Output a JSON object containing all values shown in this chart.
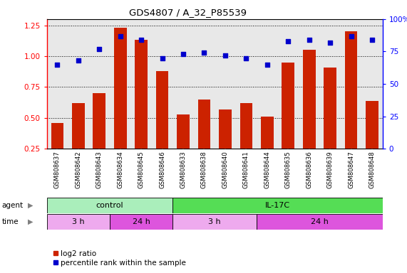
{
  "title": "GDS4807 / A_32_P85539",
  "samples": [
    "GSM808637",
    "GSM808642",
    "GSM808643",
    "GSM808634",
    "GSM808645",
    "GSM808646",
    "GSM808633",
    "GSM808638",
    "GSM808640",
    "GSM808641",
    "GSM808644",
    "GSM808635",
    "GSM808636",
    "GSM808639",
    "GSM808647",
    "GSM808648"
  ],
  "log2_ratio": [
    0.46,
    0.62,
    0.7,
    1.23,
    1.13,
    0.88,
    0.53,
    0.65,
    0.57,
    0.62,
    0.51,
    0.95,
    1.05,
    0.91,
    1.2,
    0.64
  ],
  "percentile_pct": [
    65,
    68,
    77,
    87,
    84,
    70,
    73,
    74,
    72,
    70,
    65,
    83,
    84,
    82,
    87,
    84
  ],
  "bar_color": "#cc2200",
  "dot_color": "#0000cc",
  "agent_groups": [
    {
      "label": "control",
      "start": 0,
      "end": 6,
      "color": "#aaeebb"
    },
    {
      "label": "IL-17C",
      "start": 6,
      "end": 16,
      "color": "#55dd55"
    }
  ],
  "time_groups": [
    {
      "label": "3 h",
      "start": 0,
      "end": 3,
      "color": "#eeaaee"
    },
    {
      "label": "24 h",
      "start": 3,
      "end": 6,
      "color": "#dd55dd"
    },
    {
      "label": "3 h",
      "start": 6,
      "end": 10,
      "color": "#eeaaee"
    },
    {
      "label": "24 h",
      "start": 10,
      "end": 16,
      "color": "#dd55dd"
    }
  ],
  "ylim_left": [
    0.25,
    1.3
  ],
  "ylim_right": [
    0,
    100
  ],
  "yticks_left": [
    0.25,
    0.5,
    0.75,
    1.0,
    1.25
  ],
  "yticks_right": [
    0,
    25,
    50,
    75,
    100
  ],
  "bar_bottom": 0.0,
  "plot_bg_color": "#e8e8e8",
  "legend_items": [
    {
      "label": "log2 ratio",
      "color": "#cc2200"
    },
    {
      "label": "percentile rank within the sample",
      "color": "#0000cc"
    }
  ]
}
